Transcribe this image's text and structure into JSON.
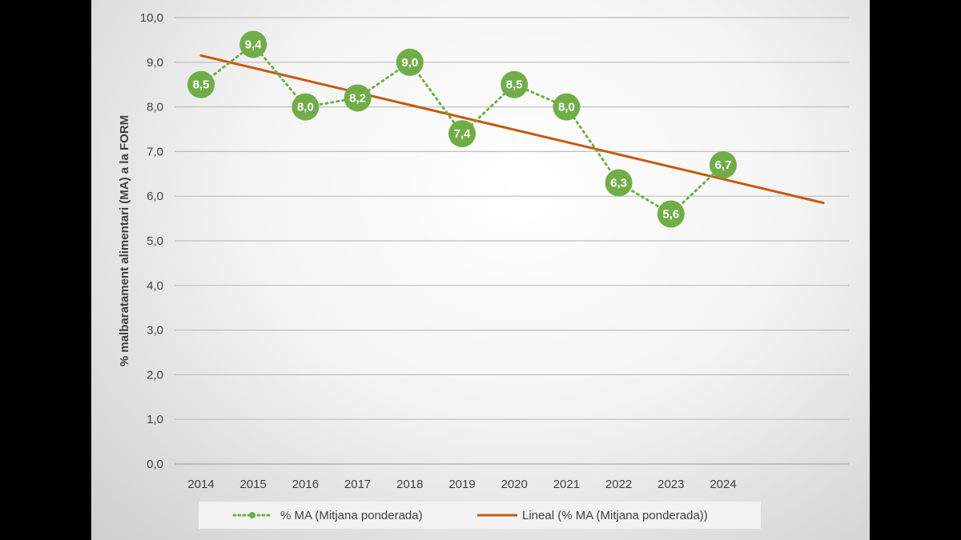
{
  "chart_data": {
    "type": "line",
    "ylabel": "% malbaratament alimentari (MA) a la FORM",
    "xlabel": "",
    "ylim": [
      0,
      10
    ],
    "yticks": [
      "0,0",
      "1,0",
      "2,0",
      "3,0",
      "4,0",
      "5,0",
      "6,0",
      "7,0",
      "8,0",
      "9,0",
      "10,0"
    ],
    "categories": [
      "2014",
      "2015",
      "2016",
      "2017",
      "2018",
      "2019",
      "2020",
      "2021",
      "2022",
      "2023",
      "2024"
    ],
    "series": [
      {
        "name": "% MA (Mitjana ponderada)",
        "values": [
          8.5,
          9.4,
          8.0,
          8.2,
          9.0,
          7.4,
          8.5,
          8.0,
          6.3,
          5.6,
          6.7
        ],
        "labels": [
          "8,5",
          "9,4",
          "8,0",
          "8,2",
          "9,0",
          "7,4",
          "8,5",
          "8,0",
          "6,3",
          "5,6",
          "6,7"
        ],
        "color": "#70ad47",
        "style": "dotted-with-markers"
      }
    ],
    "trendline": {
      "name": "Lineal (% MA (Mitjana ponderada))",
      "type": "linear",
      "color": "#c55a11",
      "start": {
        "x": "2014",
        "y": 9.15
      },
      "end_value": 5.85
    },
    "grid": true,
    "legend_position": "bottom"
  }
}
